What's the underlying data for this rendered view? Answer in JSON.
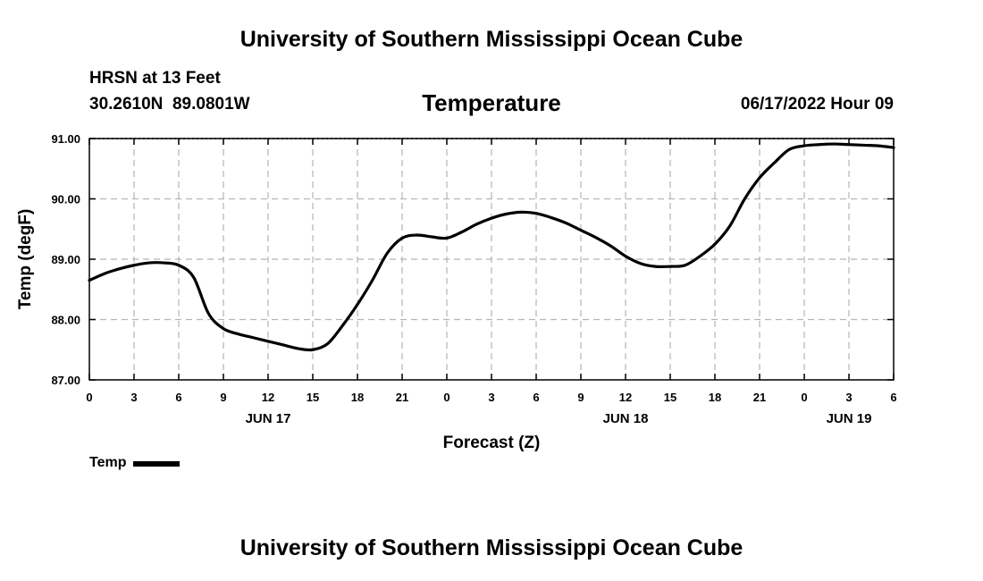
{
  "header": {
    "title": "University of Southern Mississippi Ocean Cube",
    "station": "HRSN at 13 Feet",
    "coords": "30.2610N  89.0801W",
    "time": "06/17/2022 Hour 09"
  },
  "footer": {
    "title": "University of Southern Mississippi Ocean Cube"
  },
  "legend": {
    "label": "Temp"
  },
  "chart_data": {
    "type": "line",
    "title": "Temperature",
    "xlabel": "Forecast (Z)",
    "ylabel": "Temp (degF)",
    "ylim": [
      87.0,
      91.0
    ],
    "xlim": [
      0,
      54
    ],
    "grid": true,
    "legend_position": "bottom-left",
    "x_ticks": [
      {
        "x": 0,
        "label": "0"
      },
      {
        "x": 3,
        "label": "3"
      },
      {
        "x": 6,
        "label": "6"
      },
      {
        "x": 9,
        "label": "9"
      },
      {
        "x": 12,
        "label": "12"
      },
      {
        "x": 15,
        "label": "15"
      },
      {
        "x": 18,
        "label": "18"
      },
      {
        "x": 21,
        "label": "21"
      },
      {
        "x": 24,
        "label": "0"
      },
      {
        "x": 27,
        "label": "3"
      },
      {
        "x": 30,
        "label": "6"
      },
      {
        "x": 33,
        "label": "9"
      },
      {
        "x": 36,
        "label": "12"
      },
      {
        "x": 39,
        "label": "15"
      },
      {
        "x": 42,
        "label": "18"
      },
      {
        "x": 45,
        "label": "21"
      },
      {
        "x": 48,
        "label": "0"
      },
      {
        "x": 51,
        "label": "3"
      },
      {
        "x": 54,
        "label": "6"
      }
    ],
    "y_ticks": [
      {
        "y": 87.0,
        "label": "87.00"
      },
      {
        "y": 88.0,
        "label": "88.00"
      },
      {
        "y": 89.0,
        "label": "89.00"
      },
      {
        "y": 90.0,
        "label": "90.00"
      },
      {
        "y": 91.0,
        "label": "91.00"
      }
    ],
    "date_labels": [
      {
        "x": 12,
        "label": "JUN 17"
      },
      {
        "x": 36,
        "label": "JUN 18"
      },
      {
        "x": 51,
        "label": "JUN 19"
      }
    ],
    "series": [
      {
        "name": "Temp",
        "x": [
          0,
          1,
          2,
          3,
          4,
          5,
          6,
          7,
          8,
          9,
          10,
          11,
          12,
          13,
          14,
          15,
          16,
          17,
          18,
          19,
          20,
          21,
          22,
          23,
          24,
          25,
          26,
          27,
          28,
          29,
          30,
          31,
          32,
          33,
          34,
          35,
          36,
          37,
          38,
          39,
          40,
          41,
          42,
          43,
          44,
          45,
          46,
          47,
          48,
          49,
          50,
          51,
          52,
          53,
          54
        ],
        "values": [
          88.65,
          88.76,
          88.84,
          88.9,
          88.94,
          88.94,
          88.9,
          88.7,
          88.1,
          87.85,
          87.76,
          87.7,
          87.64,
          87.58,
          87.52,
          87.5,
          87.6,
          87.9,
          88.25,
          88.65,
          89.1,
          89.35,
          89.4,
          89.37,
          89.35,
          89.45,
          89.58,
          89.68,
          89.75,
          89.78,
          89.76,
          89.69,
          89.6,
          89.48,
          89.36,
          89.22,
          89.05,
          88.93,
          88.88,
          88.88,
          88.9,
          89.05,
          89.25,
          89.55,
          90.0,
          90.35,
          90.6,
          90.82,
          90.88,
          90.9,
          90.91,
          90.9,
          90.89,
          90.88,
          90.85
        ]
      }
    ]
  }
}
